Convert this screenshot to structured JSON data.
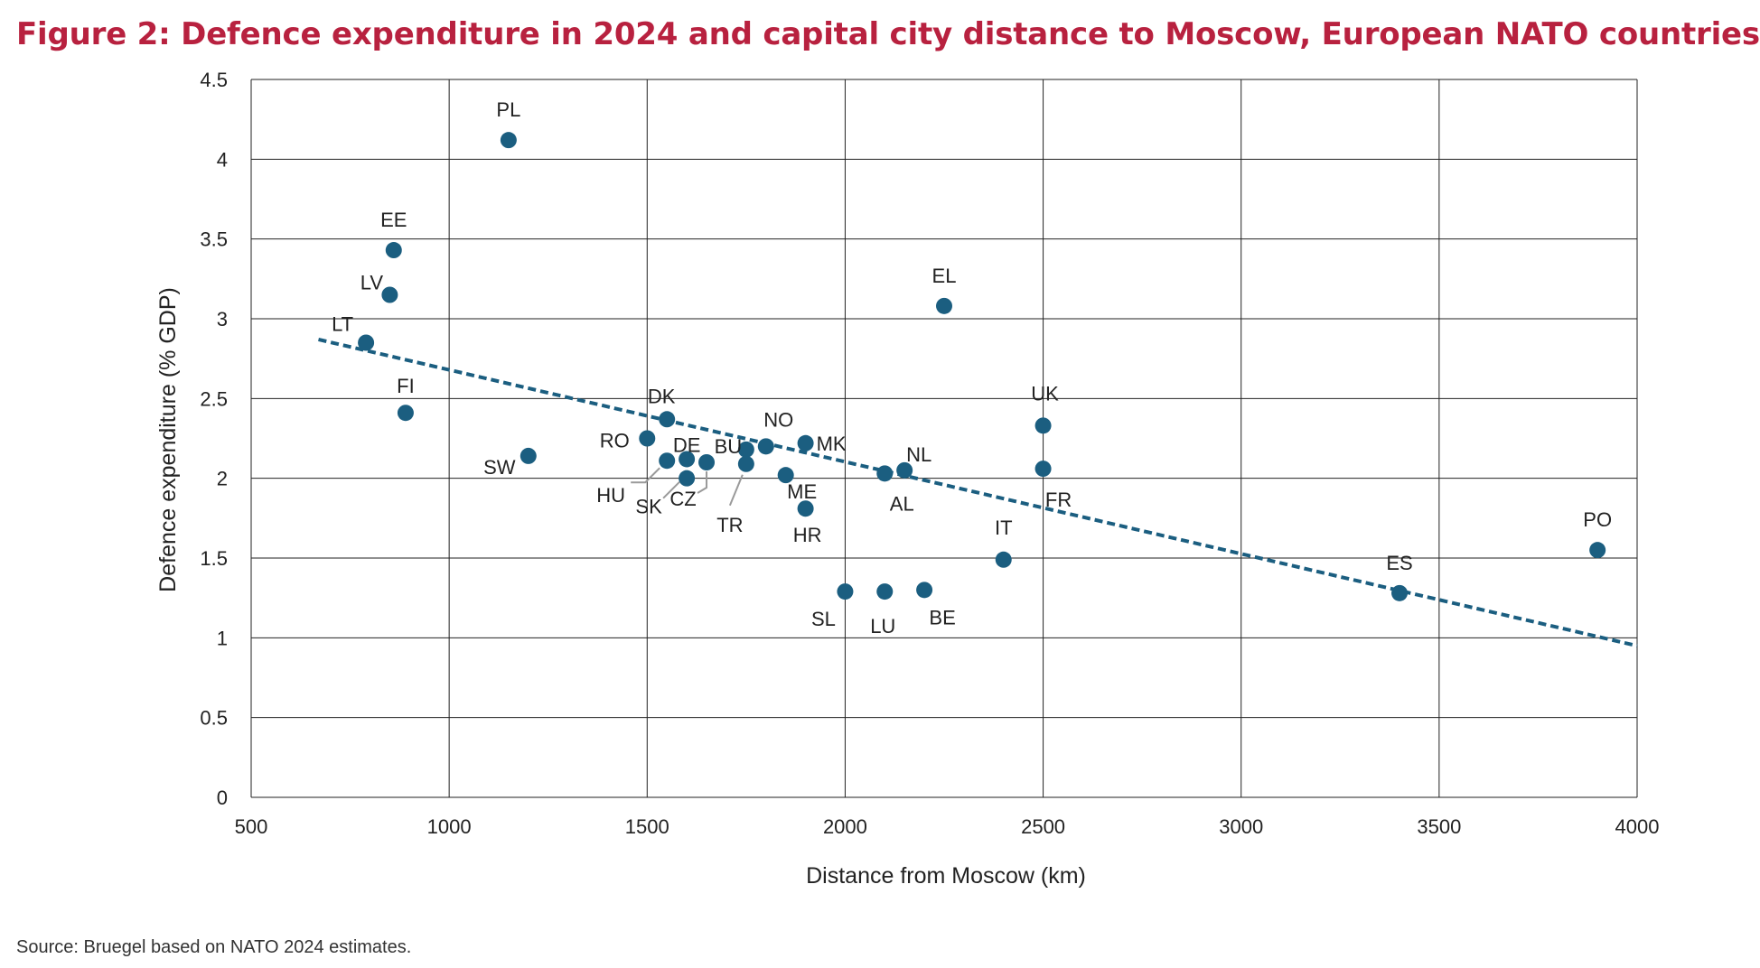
{
  "title": "Figure 2: Defence expenditure in 2024 and capital city distance to Moscow, European NATO countries",
  "source": "Source: Bruegel based on NATO 2024 estimates.",
  "colors": {
    "title": "#b8213f",
    "marker": "#1b5e80",
    "trend": "#1b5e80",
    "grid": "#222222"
  },
  "chart_data": {
    "type": "scatter",
    "xlabel": "Distance from Moscow (km)",
    "ylabel": "Defence expenditure (% GDP)",
    "xlim": [
      500,
      4000
    ],
    "ylim": [
      0,
      4.5
    ],
    "xticks": [
      "500",
      "1000",
      "1500",
      "2000",
      "2500",
      "3000",
      "3500",
      "4000"
    ],
    "yticks": [
      "0",
      "0.5",
      "1",
      "1.5",
      "2",
      "2.5",
      "3",
      "3.5",
      "4",
      "4.5"
    ],
    "grid": true,
    "points": [
      {
        "label": "PL",
        "x": 1150,
        "y": 4.12
      },
      {
        "label": "EE",
        "x": 860,
        "y": 3.43
      },
      {
        "label": "LV",
        "x": 850,
        "y": 3.15
      },
      {
        "label": "LT",
        "x": 790,
        "y": 2.85
      },
      {
        "label": "FI",
        "x": 890,
        "y": 2.41
      },
      {
        "label": "SW",
        "x": 1200,
        "y": 2.14
      },
      {
        "label": "DK",
        "x": 1550,
        "y": 2.37
      },
      {
        "label": "RO",
        "x": 1500,
        "y": 2.25
      },
      {
        "label": "HU",
        "x": 1550,
        "y": 2.11
      },
      {
        "label": "DE",
        "x": 1600,
        "y": 2.12
      },
      {
        "label": "SK",
        "x": 1600,
        "y": 2.0
      },
      {
        "label": "CZ",
        "x": 1650,
        "y": 2.1
      },
      {
        "label": "BU",
        "x": 1750,
        "y": 2.18
      },
      {
        "label": "TR",
        "x": 1750,
        "y": 2.09
      },
      {
        "label": "NO",
        "x": 1800,
        "y": 2.2
      },
      {
        "label": "MK",
        "x": 1900,
        "y": 2.22
      },
      {
        "label": "ME",
        "x": 1850,
        "y": 2.02
      },
      {
        "label": "HR",
        "x": 1900,
        "y": 1.81
      },
      {
        "label": "AL",
        "x": 2100,
        "y": 2.03
      },
      {
        "label": "NL",
        "x": 2150,
        "y": 2.05
      },
      {
        "label": "EL",
        "x": 2250,
        "y": 3.08
      },
      {
        "label": "SL",
        "x": 2000,
        "y": 1.29
      },
      {
        "label": "LU",
        "x": 2100,
        "y": 1.29
      },
      {
        "label": "BE",
        "x": 2200,
        "y": 1.3
      },
      {
        "label": "IT",
        "x": 2400,
        "y": 1.49
      },
      {
        "label": "UK",
        "x": 2500,
        "y": 2.33
      },
      {
        "label": "FR",
        "x": 2500,
        "y": 2.06
      },
      {
        "label": "ES",
        "x": 3400,
        "y": 1.28
      },
      {
        "label": "PO",
        "x": 3900,
        "y": 1.55
      }
    ],
    "trendline": {
      "x": [
        670,
        4000
      ],
      "y": [
        2.87,
        0.95
      ]
    }
  }
}
